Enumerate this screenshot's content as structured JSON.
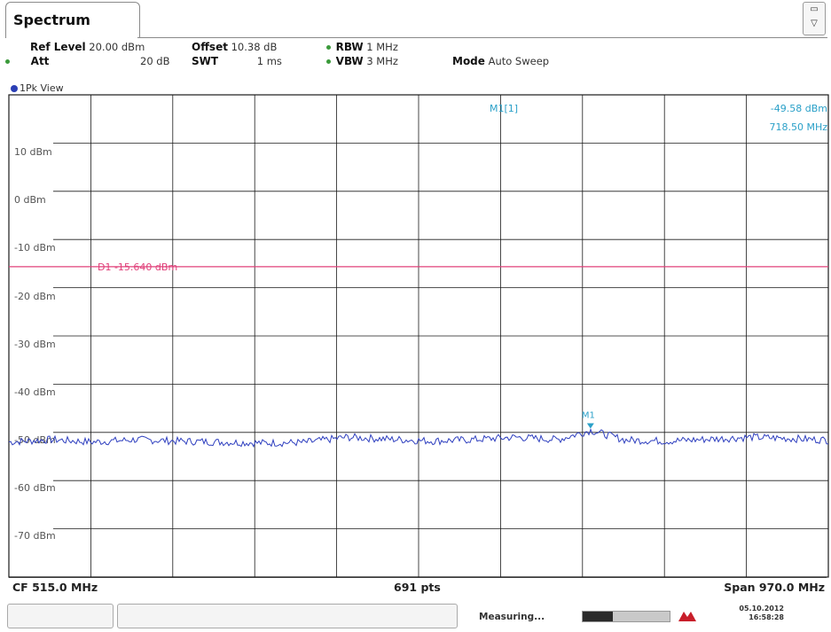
{
  "app": {
    "tab_title": "Spectrum"
  },
  "settings": {
    "ref_level_label": "Ref Level",
    "ref_level_value": "20.00 dBm",
    "offset_label": "Offset",
    "offset_value": "10.38 dB",
    "rbw_label": "RBW",
    "rbw_value": "1 MHz",
    "att_label": "Att",
    "att_value": "20 dB",
    "swt_label": "SWT",
    "swt_value": "1 ms",
    "vbw_label": "VBW",
    "vbw_value": "3 MHz",
    "mode_label": "Mode",
    "mode_value": "Auto Sweep"
  },
  "view": {
    "label": "1Pk View"
  },
  "marker": {
    "name": "M1[1]",
    "level": "-49.58 dBm",
    "freq": "718.50 MHz",
    "tag": "M1"
  },
  "display_line": {
    "name": "D1",
    "value": "-15.640 dBm"
  },
  "footer": {
    "cf": "CF 515.0 MHz",
    "pts": "691 pts",
    "span": "Span 970.0 MHz"
  },
  "status": {
    "measuring": "Measuring...",
    "date": "05.10.2012",
    "time": "16:58:28",
    "progress": 0.35
  },
  "colors": {
    "trace": "#2e3fbf",
    "display_line": "#e0407a",
    "marker": "#2aa0c8",
    "grid": "#1a1a1a"
  },
  "chart_data": {
    "type": "line",
    "xlim": [
      30.0,
      1000.0
    ],
    "ylim": [
      -80,
      20
    ],
    "y_ticks": [
      "10 dBm",
      "0 dBm",
      "-10 dBm",
      "-20 dBm",
      "-30 dBm",
      "-40 dBm",
      "-50 dBm",
      "-60 dBm",
      "-70 dBm"
    ],
    "y_tick_values": [
      10,
      0,
      -10,
      -20,
      -30,
      -40,
      -50,
      -60,
      -70
    ],
    "series": [
      {
        "x": [
          30,
          80,
          130,
          180,
          230,
          280,
          330,
          380,
          430,
          480,
          530,
          580,
          630,
          680,
          718.5,
          760,
          810,
          860,
          910,
          960,
          1000
        ],
        "y": [
          -52.0,
          -51.5,
          -52.0,
          -51.5,
          -51.8,
          -52.0,
          -52.2,
          -52.1,
          -51.0,
          -51.4,
          -51.8,
          -51.5,
          -51.0,
          -51.5,
          -49.58,
          -51.6,
          -51.8,
          -51.4,
          -51.0,
          -51.3,
          -51.6
        ]
      }
    ]
  }
}
